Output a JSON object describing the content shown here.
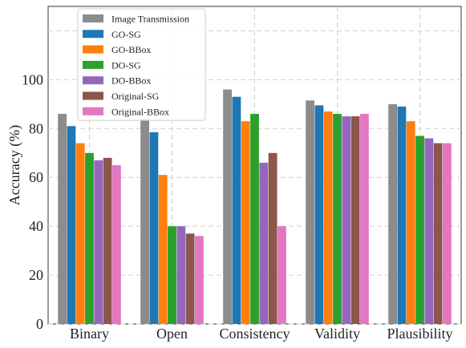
{
  "chart_data": {
    "type": "bar",
    "title": "",
    "xlabel": "",
    "ylabel": "Accuracy (%)",
    "ylim": [
      0,
      130
    ],
    "yticks": [
      0,
      20,
      40,
      60,
      80,
      100
    ],
    "grid": true,
    "legend_position": "top-left",
    "categories": [
      "Binary",
      "Open",
      "Consistency",
      "Validity",
      "Plausibility"
    ],
    "series": [
      {
        "name": "Image Transmission",
        "color": "#8c8c8c",
        "values": [
          86,
          84,
          96,
          91.5,
          90
        ]
      },
      {
        "name": "GO-SG",
        "color": "#1f77b4",
        "values": [
          81,
          78.5,
          93,
          89.5,
          89
        ]
      },
      {
        "name": "GO-BBox",
        "color": "#ff7f0e",
        "values": [
          74,
          61,
          83,
          87,
          83
        ]
      },
      {
        "name": "DO-SG",
        "color": "#2ca02c",
        "values": [
          70,
          40,
          86,
          86,
          77
        ]
      },
      {
        "name": "DO-BBox",
        "color": "#9467bd",
        "values": [
          67,
          40,
          66,
          85,
          76
        ]
      },
      {
        "name": "Original-SG",
        "color": "#8c564b",
        "values": [
          68,
          37,
          70,
          85,
          74
        ]
      },
      {
        "name": "Original-BBox",
        "color": "#e377c2",
        "values": [
          65,
          36,
          40,
          86,
          74
        ]
      }
    ]
  }
}
